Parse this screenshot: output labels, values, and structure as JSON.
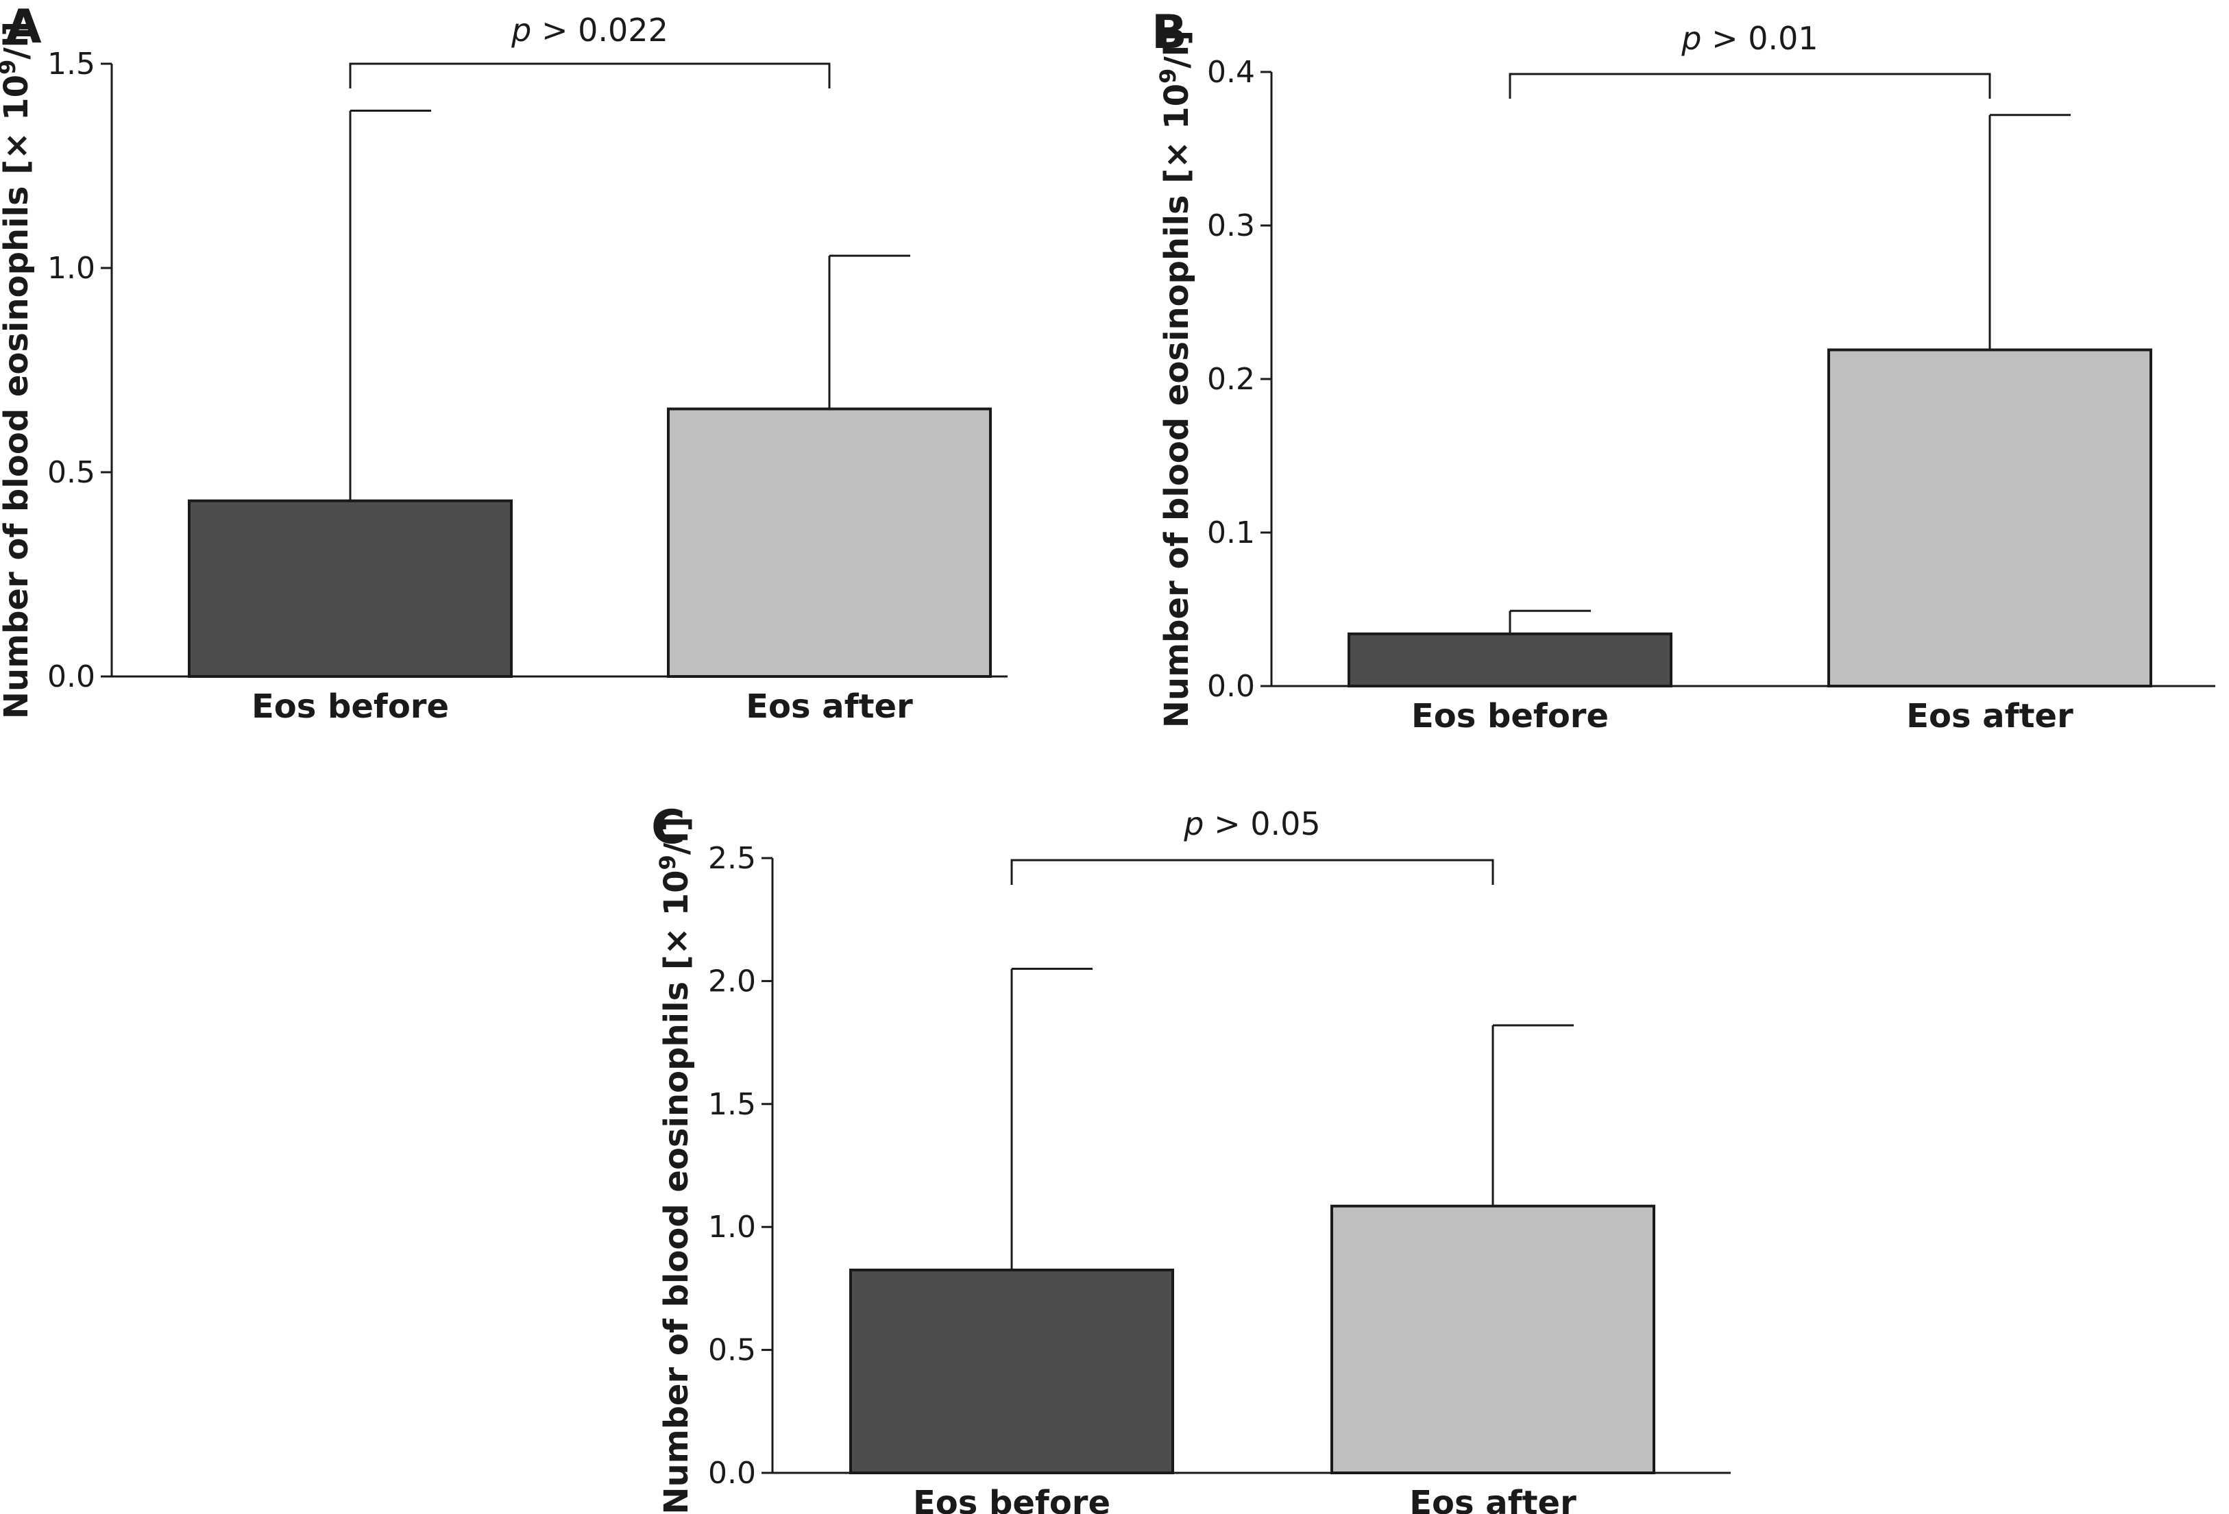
{
  "figure": {
    "y_label_text": "Number of blood eosinophils [× 10",
    "y_label_sup": "9",
    "y_label_end": "/l]",
    "bar_colors": [
      "#4d4d4d",
      "#bfbfbf"
    ]
  },
  "chart_data": [
    {
      "type": "bar",
      "panel": "A",
      "categories": [
        "Eos before",
        "Eos after"
      ],
      "values": [
        0.43,
        0.655
      ],
      "error_upper": [
        1.385,
        1.03
      ],
      "ylim": [
        0.0,
        1.5
      ],
      "yticks": [
        "0.0",
        "0.5",
        "1.0",
        "1.5"
      ],
      "ytick_values": [
        0.0,
        0.5,
        1.0,
        1.5
      ],
      "ylabel": "Number of blood eosinophils [× 10⁹/l]",
      "annotation": {
        "prefix": "p",
        "text": " > 0.022"
      }
    },
    {
      "type": "bar",
      "panel": "B",
      "categories": [
        "Eos before",
        "Eos after"
      ],
      "values": [
        0.034,
        0.219
      ],
      "error_upper": [
        0.049,
        0.372
      ],
      "ylim": [
        0.0,
        0.4
      ],
      "yticks": [
        "0.0",
        "0.1",
        "0.2",
        "0.3",
        "0.4"
      ],
      "ytick_values": [
        0.0,
        0.1,
        0.2,
        0.3,
        0.4
      ],
      "ylabel": "Number of blood eosinophils [× 10⁹/l]",
      "annotation": {
        "prefix": "p",
        "text": " > 0.01"
      }
    },
    {
      "type": "bar",
      "panel": "C",
      "categories": [
        "Eos before",
        "Eos after"
      ],
      "values": [
        0.825,
        1.085
      ],
      "error_upper": [
        2.05,
        1.82
      ],
      "ylim": [
        0.0,
        2.5
      ],
      "yticks": [
        "0.0",
        "0.5",
        "1.0",
        "1.5",
        "2.0",
        "2.5"
      ],
      "ytick_values": [
        0.0,
        0.5,
        1.0,
        1.5,
        2.0,
        2.5
      ],
      "ylabel": "Number of blood eosinophils [× 10⁹/l]",
      "annotation": {
        "prefix": "p",
        "text": " > 0.05"
      }
    }
  ]
}
